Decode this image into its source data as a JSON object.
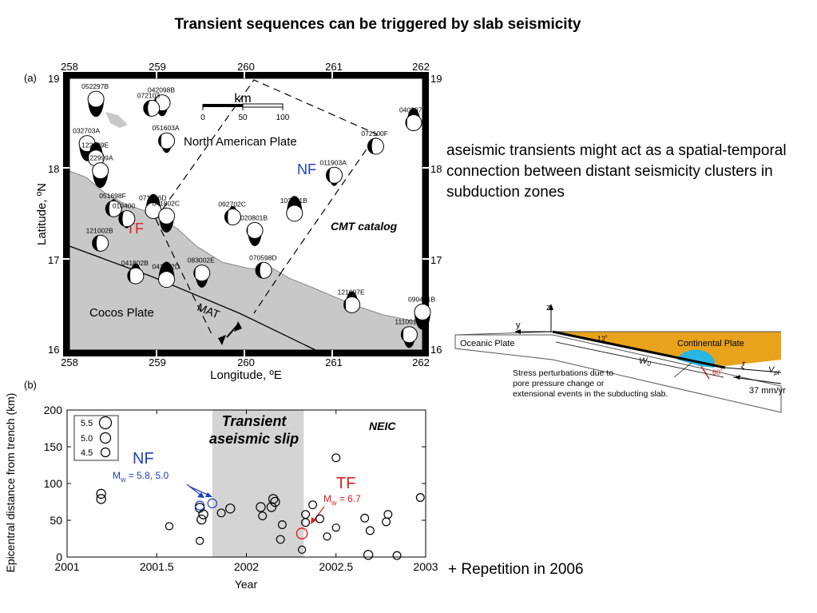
{
  "slide": {
    "title": "Transient sequences can be triggered by slab seismicity",
    "side_text": "aseismic transients might act as a spatial-temporal connection between distant seismicity clusters in subduction zones",
    "repetition_note": "+ Repetition in 2006"
  },
  "map": {
    "panel_label": "(a)",
    "xlabel": "Longitude, ºE",
    "ylabel": "Latitude, ºN",
    "lon_ticks": [
      "258",
      "259",
      "260",
      "261",
      "262"
    ],
    "lat_ticks": [
      "19",
      "18",
      "17",
      "16"
    ],
    "xlim": [
      258,
      262
    ],
    "ylim": [
      16,
      19
    ],
    "plate_north": "North American Plate",
    "plate_south": "Cocos Plate",
    "trench_label": "MAT",
    "catalog": "CMT catalog",
    "nf_label": "NF",
    "tf_label": "TF",
    "scale": {
      "unit": "km",
      "ticks": [
        "0",
        "50",
        "100"
      ]
    },
    "events": [
      {
        "id": "052297B",
        "lon": 258.3,
        "lat": 18.77
      },
      {
        "id": "042098B",
        "lon": 259.05,
        "lat": 18.73
      },
      {
        "id": "072103",
        "lon": 258.93,
        "lat": 18.67
      },
      {
        "id": "040397E",
        "lon": 261.9,
        "lat": 18.51
      },
      {
        "id": "032703A",
        "lon": 258.2,
        "lat": 18.28
      },
      {
        "id": "051603A",
        "lon": 259.1,
        "lat": 18.31
      },
      {
        "id": "072100F",
        "lon": 261.47,
        "lat": 18.25
      },
      {
        "id": "122199E",
        "lon": 258.3,
        "lat": 18.12
      },
      {
        "id": "122999A",
        "lon": 258.35,
        "lat": 17.98
      },
      {
        "id": "011903A",
        "lon": 261.0,
        "lat": 17.93
      },
      {
        "id": "051698F",
        "lon": 258.5,
        "lat": 17.56
      },
      {
        "id": "071596D",
        "lon": 258.95,
        "lat": 17.54
      },
      {
        "id": "041802C",
        "lon": 259.1,
        "lat": 17.48
      },
      {
        "id": "010400",
        "lon": 258.65,
        "lat": 17.45
      },
      {
        "id": "092702C",
        "lon": 259.85,
        "lat": 17.47
      },
      {
        "id": "102901B",
        "lon": 260.55,
        "lat": 17.51
      },
      {
        "id": "020801B",
        "lon": 260.1,
        "lat": 17.32
      },
      {
        "id": "121002B",
        "lon": 258.35,
        "lat": 17.18
      },
      {
        "id": "041802B",
        "lon": 258.75,
        "lat": 16.82
      },
      {
        "id": "041802D",
        "lon": 259.1,
        "lat": 16.78
      },
      {
        "id": "083002E",
        "lon": 259.5,
        "lat": 16.85
      },
      {
        "id": "070598D",
        "lon": 260.2,
        "lat": 16.88
      },
      {
        "id": "121697E",
        "lon": 261.2,
        "lat": 16.5
      },
      {
        "id": "090401B",
        "lon": 262.0,
        "lat": 16.42
      },
      {
        "id": "111001D",
        "lon": 261.85,
        "lat": 16.17
      }
    ]
  },
  "chart_data": {
    "type": "scatter",
    "panel_label": "(b)",
    "catalog": "NEIC",
    "xlabel": "Year",
    "ylabel": "Epicentral distance from trench (km)",
    "xlim": [
      2001,
      2003
    ],
    "ylim": [
      0,
      200
    ],
    "x_ticks": [
      "2001",
      "2001.5",
      "2002",
      "2002.5",
      "2003"
    ],
    "y_ticks": [
      "0",
      "50",
      "100",
      "150",
      "200"
    ],
    "shaded_band": {
      "x0": 2001.81,
      "x1": 2002.32,
      "label_line1": "Transient",
      "label_line2": "aseismic slip"
    },
    "legend": [
      "5.5",
      "5.0",
      "4.5"
    ],
    "nf_label": "NF",
    "nf_mw": "M",
    "nf_mw_sub": "w",
    "nf_mw_value": " = 5.8, 5.0",
    "tf_label": "TF",
    "tf_mw": "M",
    "tf_mw_sub": "w",
    "tf_mw_value": " = 6.7",
    "points": [
      {
        "x": 2001.19,
        "y": 86,
        "mag": 5.0
      },
      {
        "x": 2001.19,
        "y": 79,
        "mag": 5.0
      },
      {
        "x": 2001.57,
        "y": 42,
        "mag": 4.7
      },
      {
        "x": 2001.74,
        "y": 67,
        "mag": 5.0
      },
      {
        "x": 2001.76,
        "y": 58,
        "mag": 5.0
      },
      {
        "x": 2001.75,
        "y": 51,
        "mag": 5.0
      },
      {
        "x": 2001.74,
        "y": 22,
        "mag": 4.7
      },
      {
        "x": 2001.86,
        "y": 60,
        "mag": 4.8
      },
      {
        "x": 2001.91,
        "y": 66,
        "mag": 5.0
      },
      {
        "x": 2002.08,
        "y": 68,
        "mag": 5.0
      },
      {
        "x": 2002.09,
        "y": 56,
        "mag": 4.8
      },
      {
        "x": 2002.15,
        "y": 79,
        "mag": 5.0
      },
      {
        "x": 2002.16,
        "y": 75,
        "mag": 5.0
      },
      {
        "x": 2002.14,
        "y": 68,
        "mag": 5.0
      },
      {
        "x": 2002.2,
        "y": 44,
        "mag": 4.8
      },
      {
        "x": 2002.19,
        "y": 24,
        "mag": 4.8
      },
      {
        "x": 2002.33,
        "y": 58,
        "mag": 4.8
      },
      {
        "x": 2002.37,
        "y": 71,
        "mag": 4.8
      },
      {
        "x": 2002.33,
        "y": 47,
        "mag": 4.8
      },
      {
        "x": 2002.31,
        "y": 10,
        "mag": 4.7
      },
      {
        "x": 2002.41,
        "y": 52,
        "mag": 4.8
      },
      {
        "x": 2002.45,
        "y": 28,
        "mag": 4.7
      },
      {
        "x": 2002.5,
        "y": 135,
        "mag": 4.8
      },
      {
        "x": 2002.5,
        "y": 40,
        "mag": 4.7
      },
      {
        "x": 2002.66,
        "y": 53,
        "mag": 4.8
      },
      {
        "x": 2002.69,
        "y": 36,
        "mag": 4.8
      },
      {
        "x": 2002.79,
        "y": 58,
        "mag": 4.8
      },
      {
        "x": 2002.78,
        "y": 48,
        "mag": 4.8
      },
      {
        "x": 2002.68,
        "y": 3,
        "mag": 5.0
      },
      {
        "x": 2002.84,
        "y": 2,
        "mag": 4.8
      },
      {
        "x": 2002.97,
        "y": 81,
        "mag": 4.8
      }
    ],
    "nf_points": [
      {
        "x": 2001.74,
        "y": 70,
        "mag": 5.0
      },
      {
        "x": 2001.81,
        "y": 73,
        "mag": 5.0
      }
    ],
    "tf_points": [
      {
        "x": 2002.31,
        "y": 32,
        "mag": 5.3
      }
    ]
  },
  "schematic": {
    "axis_z": "z",
    "axis_y": "y",
    "oceanic_plate": "Oceanic Plate",
    "continental_plate": "Continental Plate",
    "dip_angle": "12˚",
    "fault_angle": "60˚",
    "width_label": "W",
    "width_sub": "0",
    "xi_label": "ξ",
    "velocity_label": "V",
    "velocity_sub": "pl",
    "rate": "37 mm/yr",
    "caption_line1": "Stress perturbations due to",
    "caption_line2": "pore pressure change or",
    "caption_line3": "extensional events in the subducting slab.",
    "colors": {
      "continental": "#e8a21c",
      "stress_zone": "#29b6e0",
      "fault": "#d42020"
    }
  },
  "colors": {
    "nf": "#1f3fbf",
    "tf": "#dd1f1f",
    "band": "#d4d4d4",
    "land": "#c8c8c8"
  }
}
